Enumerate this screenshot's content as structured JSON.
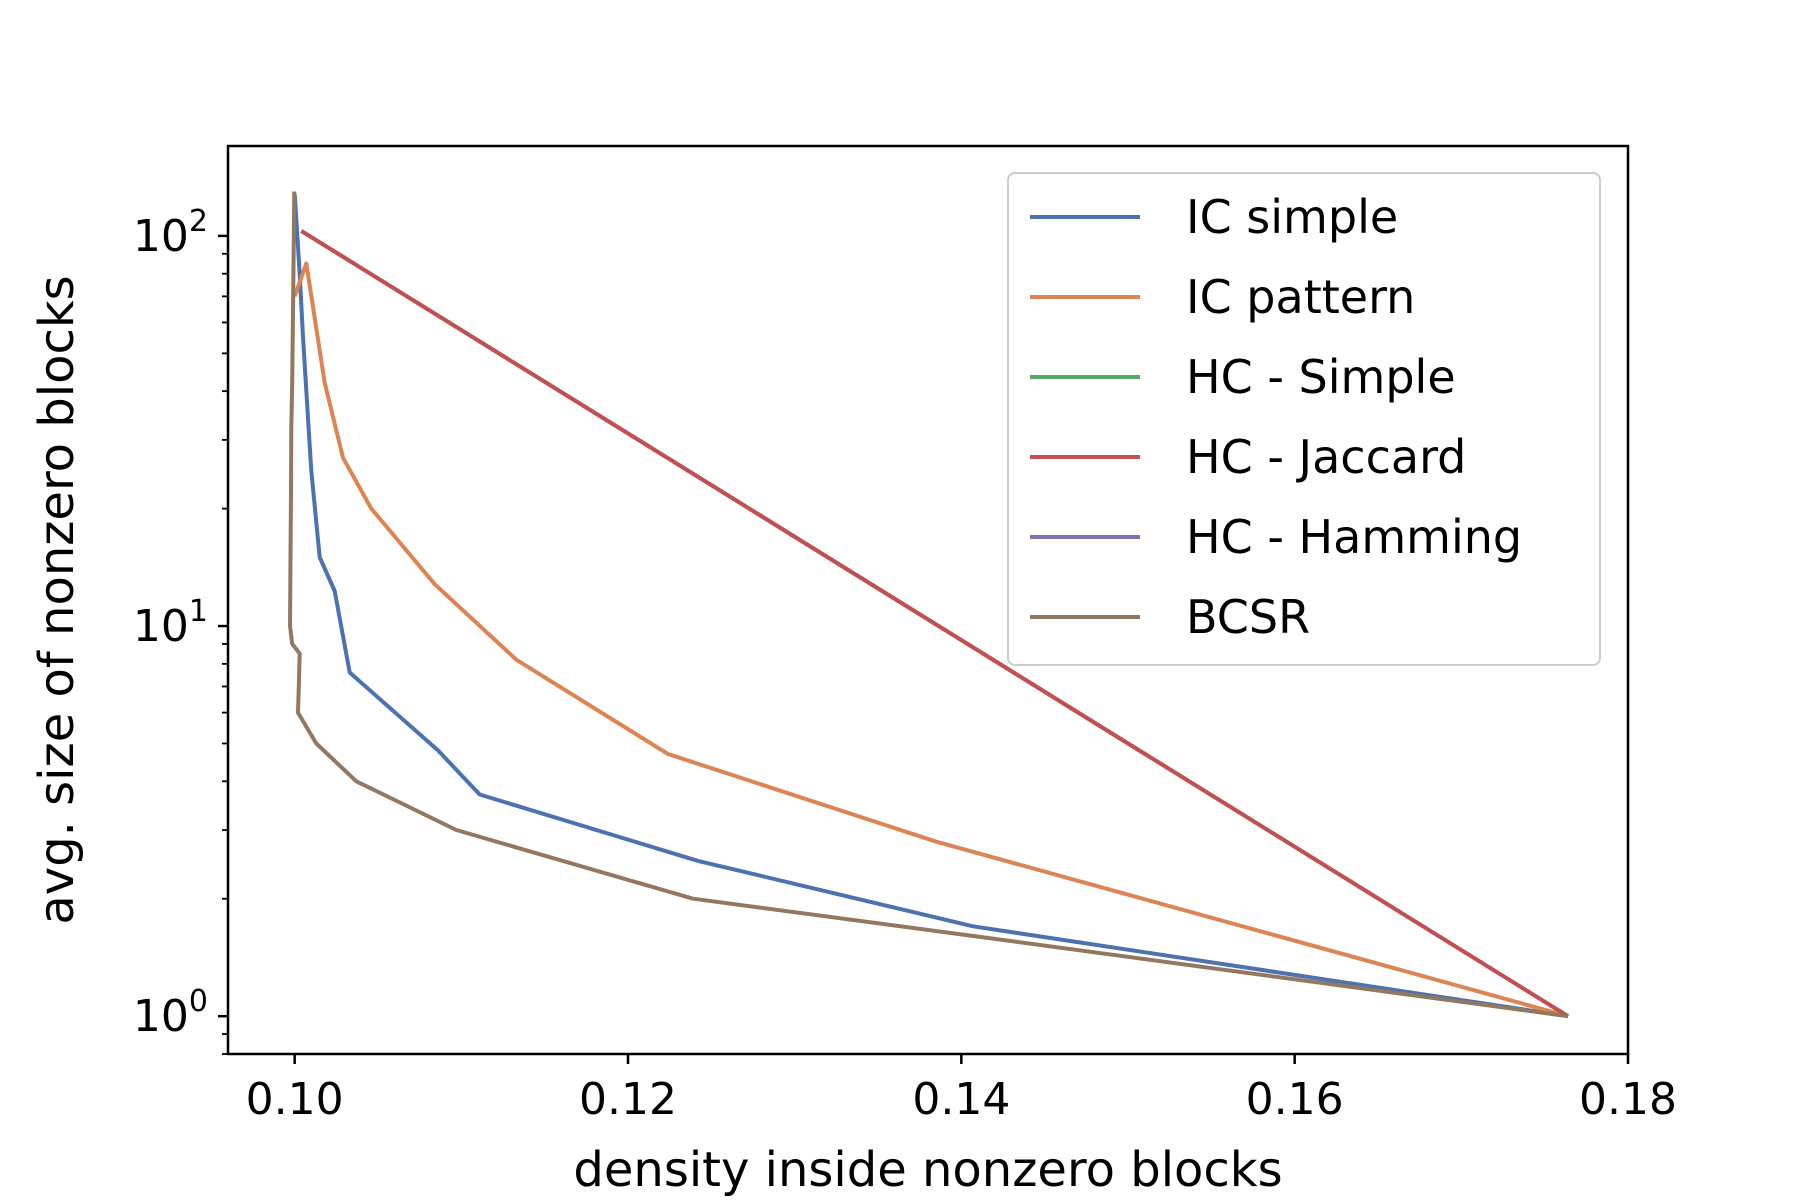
{
  "chart_data": {
    "type": "line",
    "title": "",
    "xlabel": "density inside nonzero blocks",
    "ylabel": "avg. size of nonzero blocks",
    "xlim": [
      0.096,
      0.18
    ],
    "ylim": [
      0.8,
      170
    ],
    "yscale": "log",
    "grid": false,
    "legend_position": "top-right",
    "xticks": [
      {
        "value": 0.1,
        "label": "0.10"
      },
      {
        "value": 0.12,
        "label": "0.12"
      },
      {
        "value": 0.14,
        "label": "0.14"
      },
      {
        "value": 0.16,
        "label": "0.16"
      },
      {
        "value": 0.18,
        "label": "0.18"
      }
    ],
    "yticks": [
      {
        "value": 1,
        "base": "10",
        "exp": "0"
      },
      {
        "value": 10,
        "base": "10",
        "exp": "1"
      },
      {
        "value": 100,
        "base": "10",
        "exp": "2"
      }
    ],
    "series": [
      {
        "name": "IC simple",
        "color": "#4c72b0",
        "points": [
          [
            0.1,
            128
          ],
          [
            0.1003,
            80
          ],
          [
            0.1005,
            55
          ],
          [
            0.1009,
            29
          ],
          [
            0.101,
            25
          ],
          [
            0.1015,
            15
          ],
          [
            0.1024,
            12.3
          ],
          [
            0.1033,
            7.6
          ],
          [
            0.1086,
            4.8
          ],
          [
            0.1111,
            3.7
          ],
          [
            0.1242,
            2.5
          ],
          [
            0.1407,
            1.7
          ],
          [
            0.1764,
            1.0
          ]
        ]
      },
      {
        "name": "IC pattern",
        "color": "#dd8452",
        "points": [
          [
            0.1,
            70
          ],
          [
            0.1007,
            85
          ],
          [
            0.1018,
            42
          ],
          [
            0.1029,
            27
          ],
          [
            0.1046,
            20
          ],
          [
            0.1084,
            12.8
          ],
          [
            0.1133,
            8.2
          ],
          [
            0.1224,
            4.7
          ],
          [
            0.1385,
            2.8
          ],
          [
            0.1764,
            1.0
          ]
        ]
      },
      {
        "name": "HC - Simple",
        "color": "#55a868",
        "points": [
          [
            0.1004,
            103
          ],
          [
            0.1764,
            1.0
          ]
        ]
      },
      {
        "name": "HC - Jaccard",
        "color": "#c44e52",
        "points": [
          [
            0.1004,
            103
          ],
          [
            0.1764,
            1.0
          ]
        ]
      },
      {
        "name": "HC - Hamming",
        "color": "#8172b3",
        "points": []
      },
      {
        "name": "BCSR",
        "color": "#937860",
        "points": [
          [
            0.09998,
            130
          ],
          [
            0.0999,
            64
          ],
          [
            0.09985,
            42
          ],
          [
            0.0998,
            32
          ],
          [
            0.09978,
            22
          ],
          [
            0.09975,
            15
          ],
          [
            0.09972,
            10
          ],
          [
            0.09985,
            9
          ],
          [
            0.1003,
            8.5
          ],
          [
            0.10025,
            7
          ],
          [
            0.1002,
            6
          ],
          [
            0.1013,
            5
          ],
          [
            0.1037,
            4
          ],
          [
            0.1097,
            3
          ],
          [
            0.1239,
            2
          ],
          [
            0.141,
            1.6
          ],
          [
            0.1764,
            1.0
          ]
        ]
      }
    ]
  }
}
